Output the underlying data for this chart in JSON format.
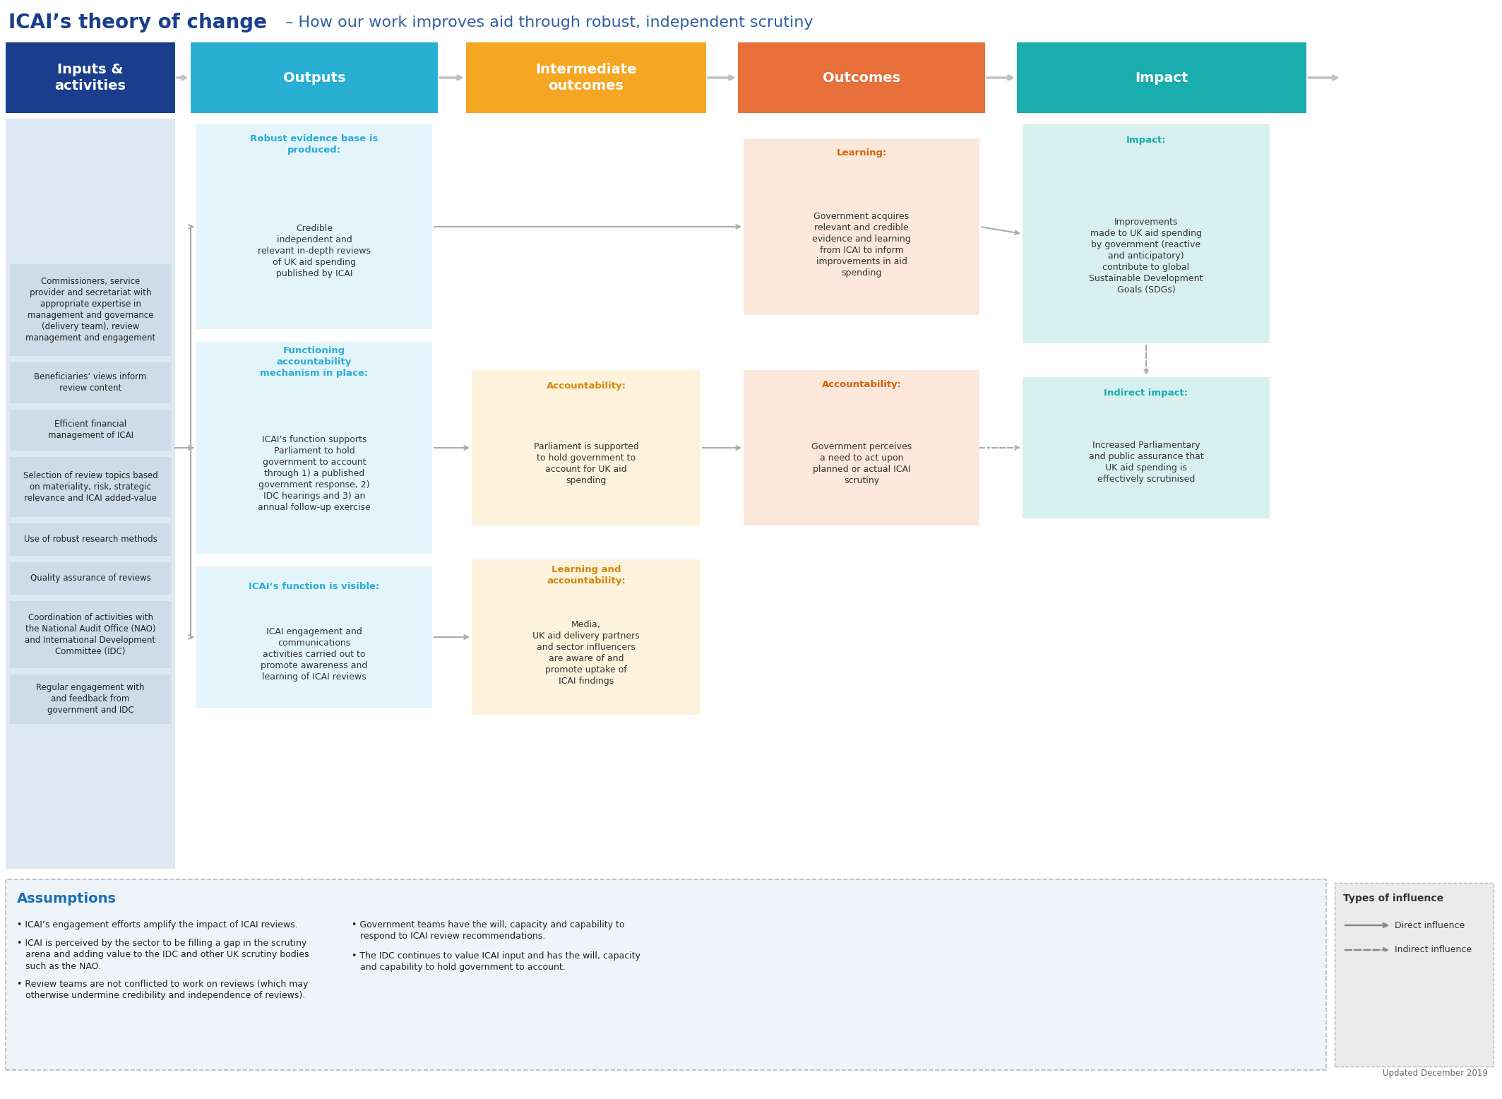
{
  "title_bold": "ICAI’s theory of change",
  "title_light": " – How our work improves aid through robust, independent scrutiny",
  "title_bold_color": "#1a3e8c",
  "title_light_color": "#2e5fa3",
  "background_color": "#ffffff",
  "header_colors": [
    "#1a3e8c",
    "#29aed4",
    "#f5a623",
    "#e8703a",
    "#1aadad"
  ],
  "header_labels": [
    "Inputs &\nactivities",
    "Outputs",
    "Intermediate\noutcomes",
    "Outcomes",
    "Impact"
  ],
  "inputs_items": [
    "Commissioners, service\nprovider and secretariat with\nappropriate expertise in\nmanagement and governance\n(delivery team), review\nmanagement and engagement",
    "Beneficiaries’ views inform\nreview content",
    "Efficient financial\nmanagement of ICAI",
    "Selection of review topics based\non materiality, risk, strategic\nrelevance and ICAI added-value",
    "Use of robust research methods",
    "Quality assurance of reviews",
    "Coordination of activities with\nthe National Audit Office (NAO)\nand International Development\nCommittee (IDC)",
    "Regular engagement with\nand feedback from\ngovernment and IDC"
  ],
  "inputs_bg": "#dde8f0",
  "inputs_item_bg": "#cddce8",
  "outputs_boxes": [
    {
      "title": "Robust evidence base is\nproduced:",
      "body": "Credible\nindependent and\nrelevant in-depth reviews\nof UK aid spending\npublished by ICAI",
      "title_color": "#29aed4",
      "bg_color": "#e3f4fb"
    },
    {
      "title": "Functioning\naccountability\nmechanism in place:",
      "body": "ICAI’s function supports\nParliament to hold\ngovernment to account\nthrough 1) a published\ngovernment response, 2)\nIDC hearings and 3) an\nannual follow-up exercise",
      "title_color": "#29aed4",
      "bg_color": "#e3f4fb"
    },
    {
      "title": "ICAI’s function is visible:",
      "body": "ICAI engagement and\ncommunications\nactivities carried out to\npromote awareness and\nlearning of ICAI reviews",
      "title_color": "#29aed4",
      "bg_color": "#e3f4fb"
    }
  ],
  "intermediate_boxes": [
    {
      "title": "Accountability:",
      "body": "Parliament is supported\nto hold government to\naccount for UK aid\nspending",
      "title_color": "#d4860a",
      "bg_color": "#fdf3dc"
    },
    {
      "title": "Learning and\naccountability:",
      "body": "Media,\nUK aid delivery partners\nand sector influencers\nare aware of and\npromote uptake of\nICAI findings",
      "title_color": "#d4860a",
      "bg_color": "#fdf3dc"
    }
  ],
  "outcomes_boxes": [
    {
      "title": "Learning:",
      "body": "Government acquires\nrelevant and credible\nevidence and learning\nfrom ICAI to inform\nimprovements in aid\nspending",
      "title_color": "#d4600a",
      "bg_color": "#fce8da"
    },
    {
      "title": "Accountability:",
      "body": "Government perceives\na need to act upon\nplanned or actual ICAI\nscrutiny",
      "title_color": "#d4600a",
      "bg_color": "#fce8da"
    }
  ],
  "impact_boxes": [
    {
      "title": "Impact:",
      "body": "Improvements\nmade to UK aid spending\nby government (reactive\nand anticipatory)\ncontribute to global\nSustainable Development\nGoals (SDGs)",
      "title_color": "#1aadad",
      "bg_color": "#d8f0f0",
      "solid_arrow": true
    },
    {
      "title": "Indirect impact:",
      "body": "Increased Parliamentary\nand public assurance that\nUK aid spending is\neffectively scrutinised",
      "title_color": "#1aadad",
      "bg_color": "#d8f0f0",
      "solid_arrow": false
    }
  ],
  "assumptions_title": "Assumptions",
  "assumptions_items_left": [
    "• ICAI’s engagement efforts amplify the impact of ICAI reviews.",
    "• ICAI is perceived by the sector to be filling a gap in the scrutiny\n   arena and adding value to the IDC and other UK scrutiny bodies\n   such as the NAO.",
    "• Review teams are not conflicted to work on reviews (which may\n   otherwise undermine credibility and independence of reviews)."
  ],
  "assumptions_items_right": [
    "• Government teams have the will, capacity and capability to\n   respond to ICAI review recommendations.",
    "• The IDC continues to value ICAI input and has the will, capacity\n   and capability to hold government to account."
  ],
  "legend_title": "Types of influence",
  "legend_direct": "Direct influence",
  "legend_indirect": "Indirect influence",
  "footer": "Updated December 2019",
  "assumptions_bg": "#eef4fa",
  "legend_bg": "#ebebeb",
  "arrow_color": "#aaaaaa",
  "border_color": "#bbbbbb"
}
